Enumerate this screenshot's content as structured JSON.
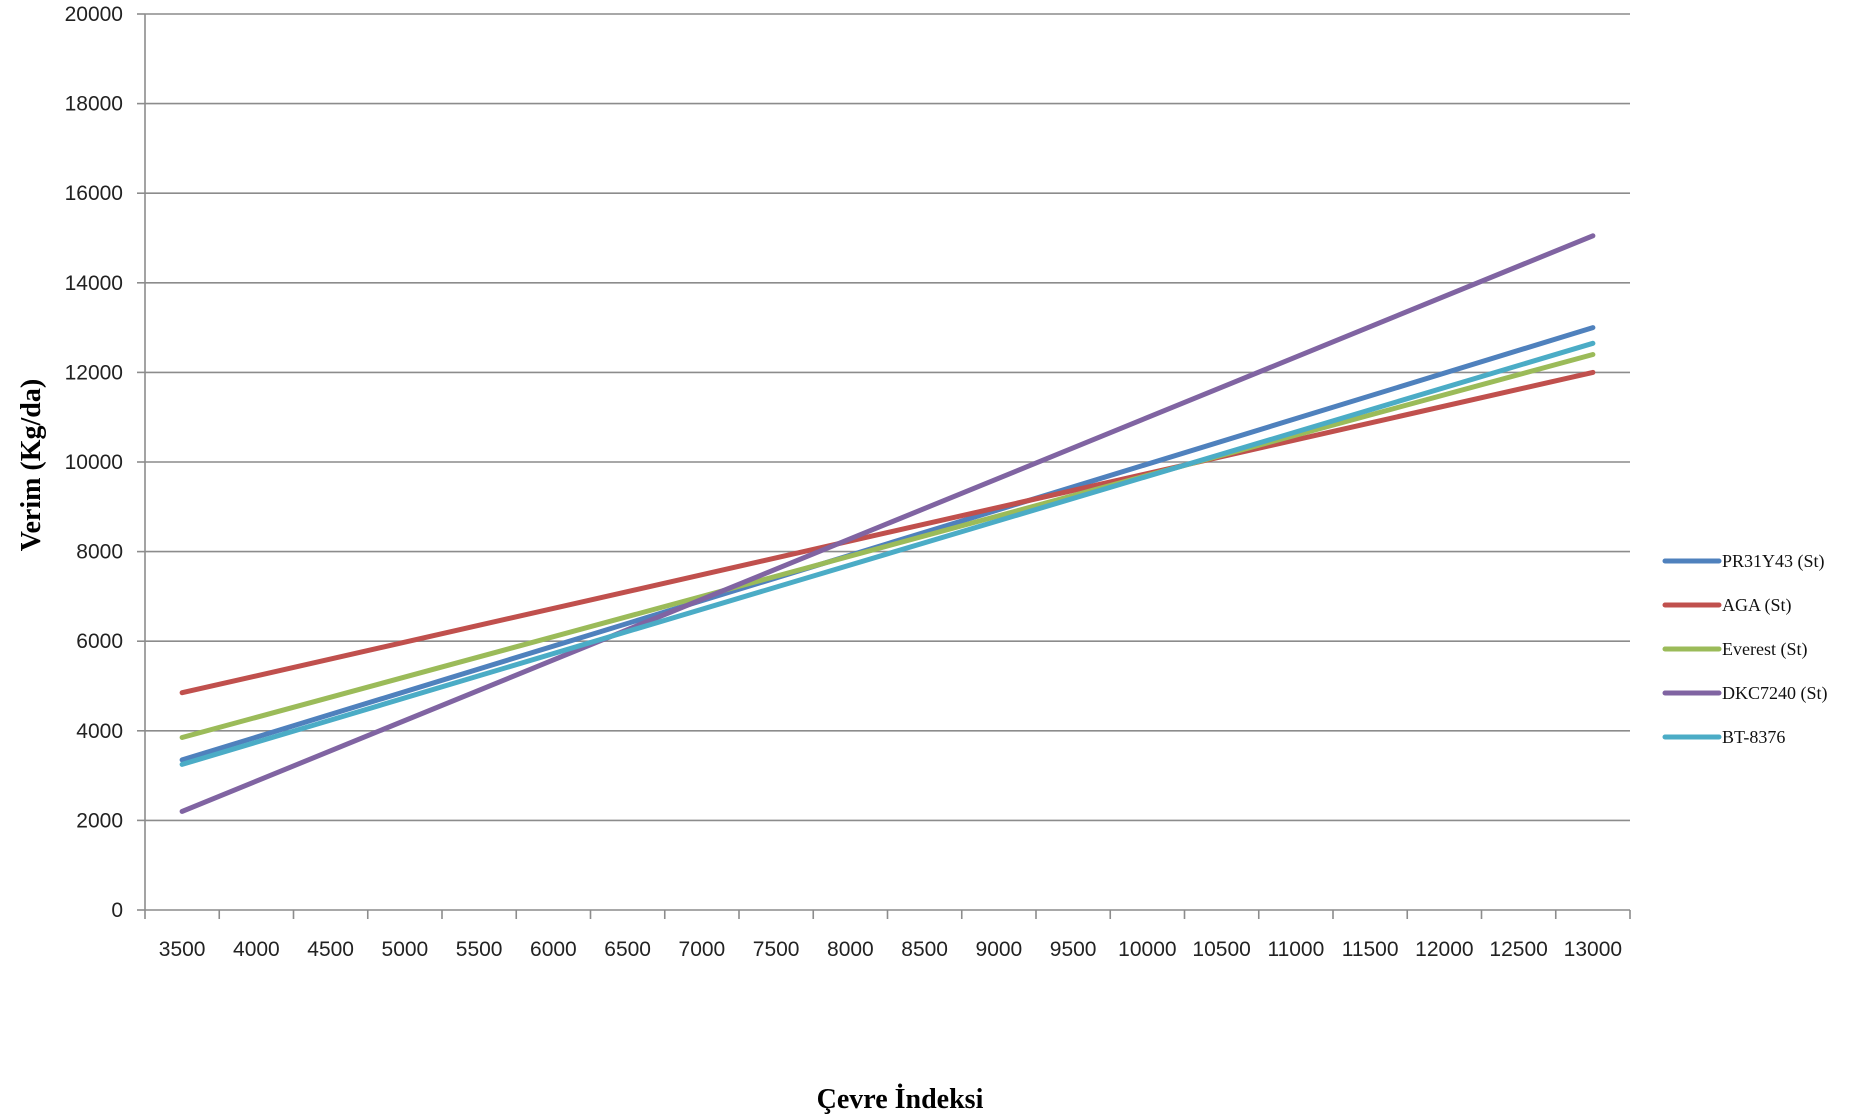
{
  "chart_data": {
    "type": "line",
    "title": "",
    "xlabel": "Çevre İndeksi",
    "ylabel": "Verim (Kg/da)",
    "x_ticks": [
      "3500",
      "4000",
      "4500",
      "5000",
      "5500",
      "6000",
      "6500",
      "7000",
      "7500",
      "8000",
      "8500",
      "9000",
      "9500",
      "10000",
      "10500",
      "11000",
      "11500",
      "12000",
      "12500",
      "13000"
    ],
    "y_ticks": [
      "0",
      "2000",
      "4000",
      "6000",
      "8000",
      "10000",
      "12000",
      "14000",
      "16000",
      "18000",
      "20000"
    ],
    "ylim": [
      0,
      20000
    ],
    "grid": true,
    "legend_position": "right",
    "x": [
      3500,
      13000
    ],
    "series": [
      {
        "name": "PR31Y43 (St)",
        "color": "#4F81BD",
        "values": [
          3350,
          13000
        ]
      },
      {
        "name": "AGA (St)",
        "color": "#C0504D",
        "values": [
          4850,
          12000
        ]
      },
      {
        "name": "Everest (St)",
        "color": "#9BBB59",
        "values": [
          3850,
          12400
        ]
      },
      {
        "name": "DKC7240 (St)",
        "color": "#8064A2",
        "values": [
          2200,
          15050
        ]
      },
      {
        "name": "BT-8376",
        "color": "#4BACC6",
        "values": [
          3250,
          12650
        ]
      }
    ]
  }
}
